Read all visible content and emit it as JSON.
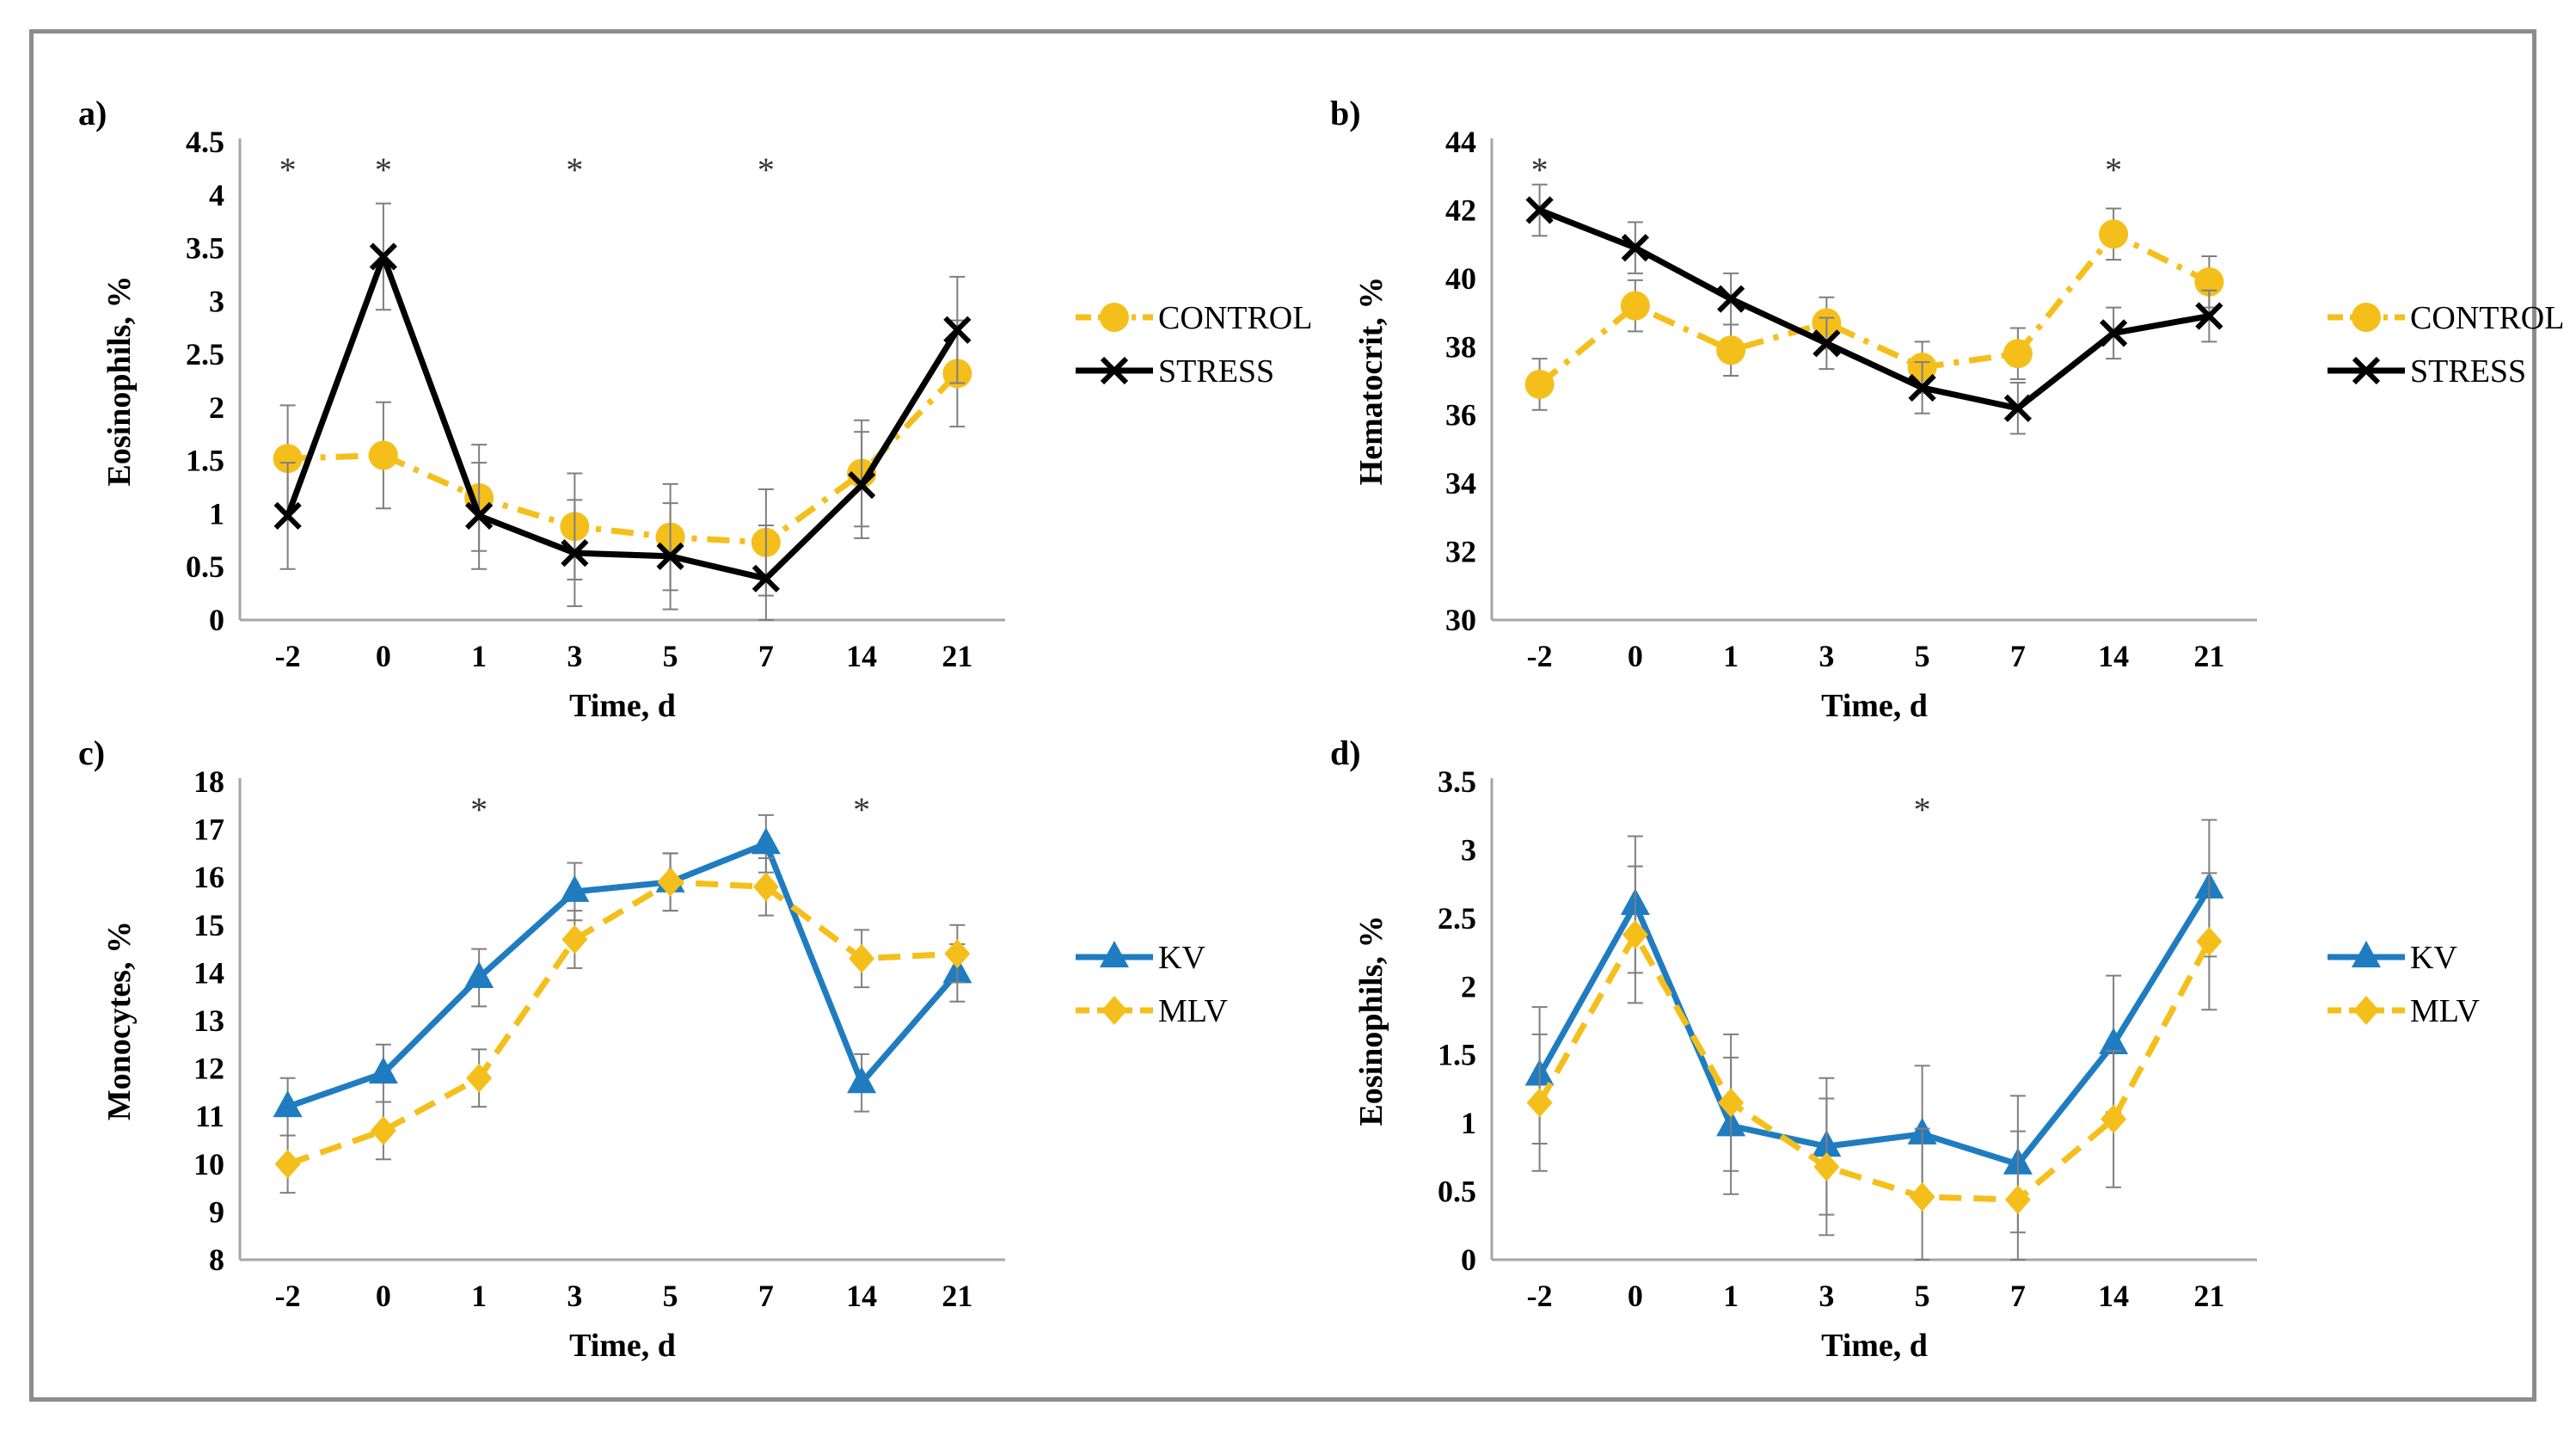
{
  "chart_data": [
    {
      "id": "a",
      "panel_label": "a)",
      "type": "line",
      "categories": [
        "-2",
        "0",
        "1",
        "3",
        "5",
        "7",
        "14",
        "21"
      ],
      "ylabel": "Eosinophils, %",
      "xlabel": "Time, d",
      "ylim": [
        0,
        4.5
      ],
      "yticks": [
        "0",
        "0.5",
        "1",
        "1.5",
        "2",
        "2.5",
        "3",
        "3.5",
        "4",
        "4.5"
      ],
      "legend": [
        "CONTROL",
        "STRESS"
      ],
      "significance": [
        {
          "category": "-2",
          "mark": "*"
        },
        {
          "category": "0",
          "mark": "*"
        },
        {
          "category": "3",
          "mark": "*"
        },
        {
          "category": "7",
          "mark": "*"
        }
      ],
      "series": [
        {
          "name": "CONTROL",
          "color": "#F5BF1B",
          "dash": "dashdot",
          "marker": "circle",
          "values": [
            1.52,
            1.55,
            1.15,
            0.88,
            0.78,
            0.73,
            1.38,
            2.32
          ],
          "errors": [
            0.5,
            0.5,
            0.5,
            0.5,
            0.5,
            0.5,
            0.5,
            0.5
          ]
        },
        {
          "name": "STRESS",
          "color": "#000000",
          "dash": "solid",
          "marker": "x",
          "values": [
            0.98,
            3.42,
            0.98,
            0.63,
            0.6,
            0.39,
            1.27,
            2.73
          ],
          "errors": [
            0.5,
            0.5,
            0.5,
            0.5,
            0.5,
            0.5,
            0.5,
            0.5
          ]
        }
      ]
    },
    {
      "id": "b",
      "panel_label": "b)",
      "type": "line",
      "categories": [
        "-2",
        "0",
        "1",
        "3",
        "5",
        "7",
        "14",
        "21"
      ],
      "ylabel": "Hematocrit, %",
      "xlabel": "Time, d",
      "ylim": [
        30,
        44
      ],
      "yticks": [
        "30",
        "32",
        "34",
        "36",
        "38",
        "40",
        "42",
        "44"
      ],
      "legend": [
        "CONTROL",
        "STRESS"
      ],
      "significance": [
        {
          "category": "-2",
          "mark": "*"
        },
        {
          "category": "14",
          "mark": "*"
        }
      ],
      "series": [
        {
          "name": "CONTROL",
          "color": "#F5BF1B",
          "dash": "dashdot",
          "marker": "circle",
          "values": [
            36.9,
            39.2,
            37.9,
            38.7,
            37.4,
            37.8,
            41.3,
            39.9
          ],
          "errors": [
            0.75,
            0.75,
            0.75,
            0.75,
            0.75,
            0.75,
            0.75,
            0.75
          ]
        },
        {
          "name": "STRESS",
          "color": "#000000",
          "dash": "solid",
          "marker": "x",
          "values": [
            42.0,
            40.9,
            39.4,
            38.1,
            36.8,
            36.2,
            38.4,
            38.9
          ],
          "errors": [
            0.75,
            0.75,
            0.75,
            0.75,
            0.75,
            0.75,
            0.75,
            0.75
          ]
        }
      ]
    },
    {
      "id": "c",
      "panel_label": "c)",
      "type": "line",
      "categories": [
        "-2",
        "0",
        "1",
        "3",
        "5",
        "7",
        "14",
        "21"
      ],
      "ylabel": "Monocytes, %",
      "xlabel": "Time, d",
      "ylim": [
        8,
        18
      ],
      "yticks": [
        "8",
        "9",
        "10",
        "11",
        "12",
        "13",
        "14",
        "15",
        "16",
        "17",
        "18"
      ],
      "legend": [
        "KV",
        "MLV"
      ],
      "significance": [
        {
          "category": "1",
          "mark": "*"
        },
        {
          "category": "14",
          "mark": "*"
        }
      ],
      "series": [
        {
          "name": "KV",
          "color": "#1F7CC1",
          "dash": "solid",
          "marker": "triangle",
          "values": [
            11.2,
            11.9,
            13.9,
            15.7,
            15.9,
            16.7,
            11.7,
            14.0
          ],
          "errors": [
            0.6,
            0.6,
            0.6,
            0.6,
            0.6,
            0.6,
            0.6,
            0.6
          ]
        },
        {
          "name": "MLV",
          "color": "#F5BF1B",
          "dash": "dashed",
          "marker": "diamond",
          "values": [
            10.0,
            10.7,
            11.8,
            14.7,
            15.9,
            15.8,
            14.3,
            14.4
          ],
          "errors": [
            0.6,
            0.6,
            0.6,
            0.6,
            0.6,
            0.6,
            0.6,
            0.6
          ]
        }
      ]
    },
    {
      "id": "d",
      "panel_label": "d)",
      "type": "line",
      "categories": [
        "-2",
        "0",
        "1",
        "3",
        "5",
        "7",
        "14",
        "21"
      ],
      "ylabel": "Eosinophils, %",
      "xlabel": "Time, d",
      "ylim": [
        0,
        3.5
      ],
      "yticks": [
        "0",
        "0.5",
        "1",
        "1.5",
        "2",
        "2.5",
        "3",
        "3.5"
      ],
      "legend": [
        "KV",
        "MLV"
      ],
      "significance": [
        {
          "category": "5",
          "mark": "*"
        }
      ],
      "series": [
        {
          "name": "KV",
          "color": "#1F7CC1",
          "dash": "solid",
          "marker": "triangle",
          "values": [
            1.35,
            2.6,
            0.98,
            0.83,
            0.92,
            0.7,
            1.58,
            2.72
          ],
          "errors": [
            0.5,
            0.5,
            0.5,
            0.5,
            0.5,
            0.5,
            0.5,
            0.5
          ]
        },
        {
          "name": "MLV",
          "color": "#F5BF1B",
          "dash": "dashed",
          "marker": "diamond",
          "values": [
            1.15,
            2.38,
            1.15,
            0.68,
            0.46,
            0.44,
            1.03,
            2.33
          ],
          "errors": [
            0.5,
            0.5,
            0.5,
            0.5,
            0.5,
            0.5,
            0.5,
            0.5
          ]
        }
      ]
    }
  ]
}
